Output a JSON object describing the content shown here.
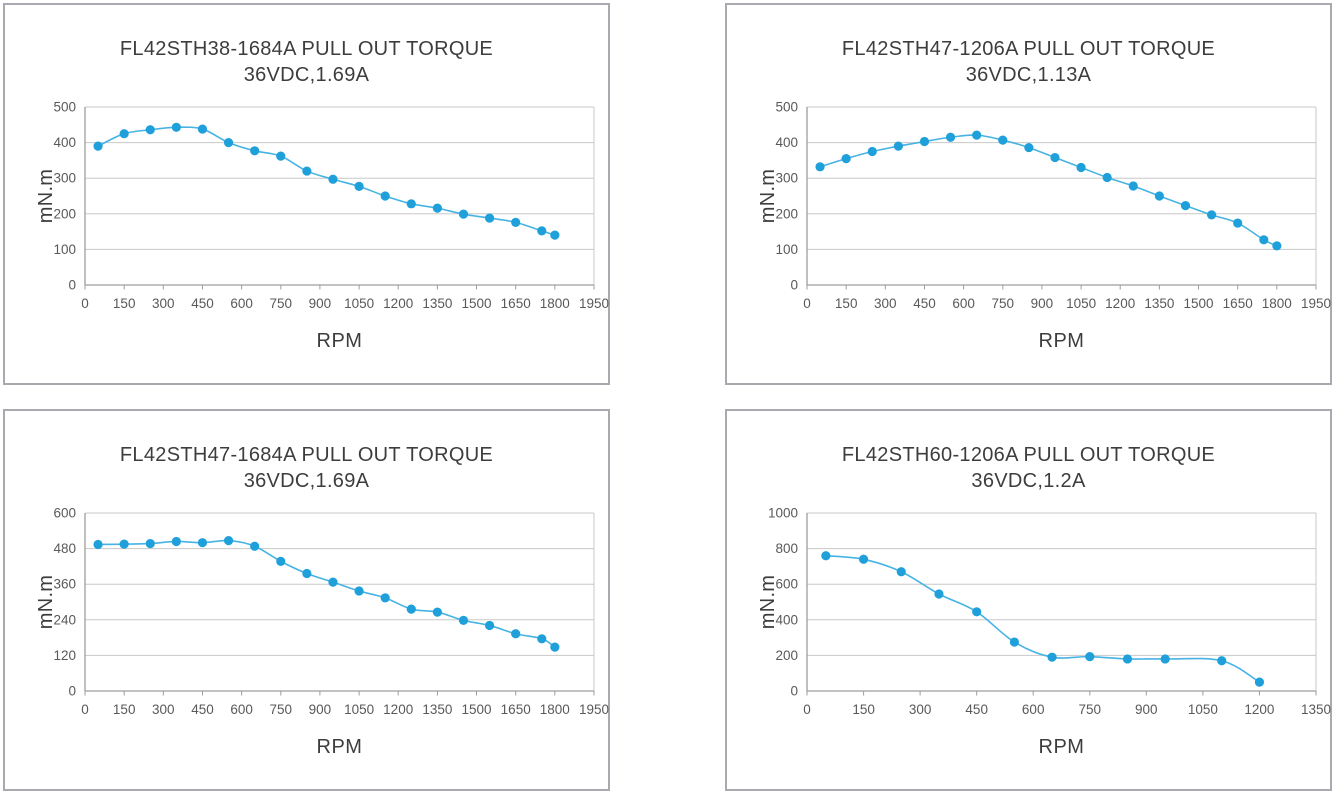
{
  "page": {
    "background": "#ffffff"
  },
  "style": {
    "panel_border_color": "#a9a9af",
    "grid_color": "#c8c8c8",
    "axis_color": "#9d9d9d",
    "line_color": "#47b3e3",
    "marker_color": "#1fa0da",
    "title_color": "#3d3d3d",
    "tick_color": "#595959",
    "page_bg": "#ffffff"
  },
  "chart_data": [
    {
      "type": "line",
      "title": "FL42STH38-1684A PULL OUT TORQUE",
      "subtitle": "36VDC,1.69A",
      "xlabel": "RPM",
      "ylabel": "mN.m",
      "xlim": [
        0,
        1950
      ],
      "ylim": [
        0,
        500
      ],
      "xticks": [
        0,
        150,
        300,
        450,
        600,
        750,
        900,
        1050,
        1200,
        1350,
        1500,
        1650,
        1800,
        1950
      ],
      "yticks": [
        0,
        100,
        200,
        300,
        400,
        500
      ],
      "grid": "horizontal",
      "legend": null,
      "x": [
        50,
        150,
        250,
        350,
        450,
        550,
        650,
        750,
        850,
        950,
        1050,
        1150,
        1250,
        1350,
        1450,
        1550,
        1650,
        1750,
        1800
      ],
      "y": [
        390,
        425,
        436,
        443,
        438,
        400,
        377,
        362,
        320,
        297,
        277,
        250,
        228,
        216,
        199,
        188,
        176,
        152,
        140
      ]
    },
    {
      "type": "line",
      "title": "FL42STH47-1206A PULL OUT TORQUE",
      "subtitle": "36VDC,1.13A",
      "xlabel": "RPM",
      "ylabel": "mN.m",
      "xlim": [
        0,
        1950
      ],
      "ylim": [
        0,
        500
      ],
      "xticks": [
        0,
        150,
        300,
        450,
        600,
        750,
        900,
        1050,
        1200,
        1350,
        1500,
        1650,
        1800,
        1950
      ],
      "yticks": [
        0,
        100,
        200,
        300,
        400,
        500
      ],
      "grid": "horizontal",
      "legend": null,
      "x": [
        50,
        150,
        250,
        350,
        450,
        550,
        650,
        750,
        850,
        950,
        1050,
        1150,
        1250,
        1350,
        1450,
        1550,
        1650,
        1750,
        1800
      ],
      "y": [
        332,
        355,
        375,
        390,
        403,
        415,
        421,
        407,
        386,
        358,
        330,
        302,
        278,
        250,
        223,
        197,
        174,
        127,
        110
      ]
    },
    {
      "type": "line",
      "title": "FL42STH47-1684A PULL OUT TORQUE",
      "subtitle": "36VDC,1.69A",
      "xlabel": "RPM",
      "ylabel": "mN.m",
      "xlim": [
        0,
        1950
      ],
      "ylim": [
        0,
        600
      ],
      "xticks": [
        0,
        150,
        300,
        450,
        600,
        750,
        900,
        1050,
        1200,
        1350,
        1500,
        1650,
        1800,
        1950
      ],
      "yticks": [
        0,
        120,
        240,
        360,
        480,
        600
      ],
      "grid": "horizontal",
      "legend": null,
      "x": [
        50,
        150,
        250,
        350,
        450,
        550,
        650,
        750,
        850,
        950,
        1050,
        1150,
        1250,
        1350,
        1450,
        1550,
        1650,
        1750,
        1800
      ],
      "y": [
        494,
        495,
        497,
        504,
        500,
        507,
        488,
        437,
        396,
        367,
        337,
        314,
        276,
        266,
        238,
        221,
        193,
        176,
        148
      ]
    },
    {
      "type": "line",
      "title": "FL42STH60-1206A PULL OUT TORQUE",
      "subtitle": "36VDC,1.2A",
      "xlabel": "RPM",
      "ylabel": "mN.m",
      "xlim": [
        0,
        1350
      ],
      "ylim": [
        0,
        1000
      ],
      "xticks": [
        0,
        150,
        300,
        450,
        600,
        750,
        900,
        1050,
        1200,
        1350
      ],
      "yticks": [
        0,
        200,
        400,
        600,
        800,
        1000
      ],
      "grid": "horizontal",
      "legend": null,
      "x": [
        50,
        150,
        250,
        350,
        450,
        550,
        650,
        750,
        850,
        950,
        1100,
        1200
      ],
      "y": [
        760,
        740,
        670,
        545,
        445,
        275,
        190,
        193,
        180,
        180,
        170,
        50
      ]
    }
  ]
}
